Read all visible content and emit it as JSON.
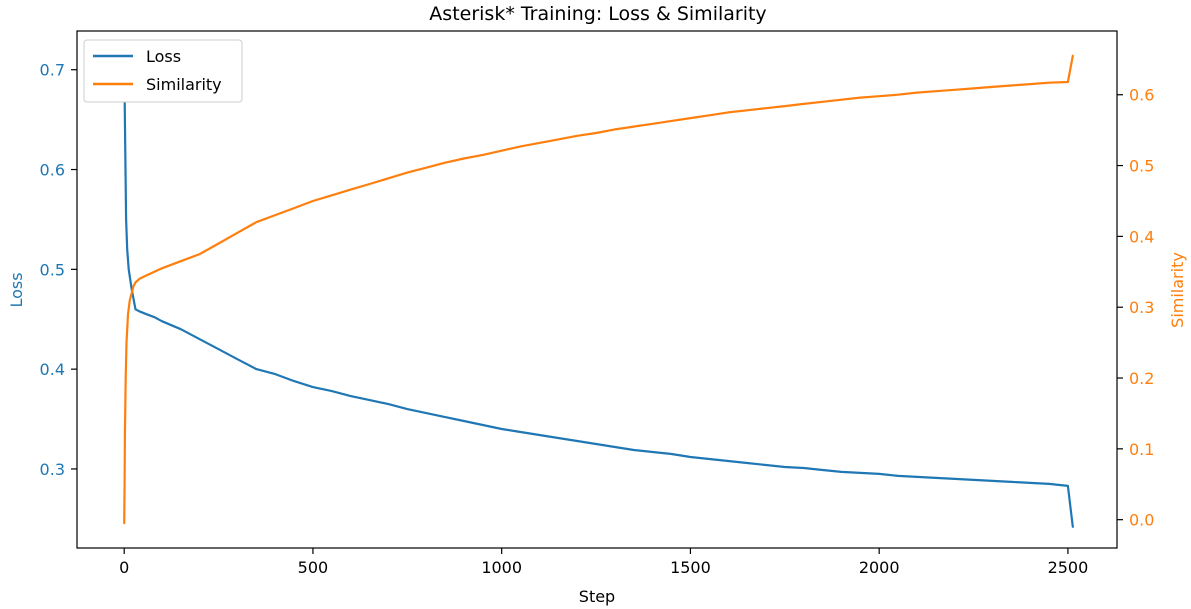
{
  "chart_data": {
    "type": "line",
    "title": "Asterisk* Training: Loss & Similarity",
    "xlabel": "Step",
    "ylabel_left": "Loss",
    "ylabel_right": "Similarity",
    "xlim": [
      -125,
      2630
    ],
    "ylim_left": [
      0.2208,
      0.7388
    ],
    "ylim_right": [
      -0.04,
      0.69
    ],
    "x_ticks": [
      0,
      500,
      1000,
      1500,
      2000,
      2500
    ],
    "y_left_ticks": [
      0.3,
      0.4,
      0.5,
      0.6,
      0.7
    ],
    "y_right_ticks": [
      0.0,
      0.1,
      0.2,
      0.3,
      0.4,
      0.5,
      0.6
    ],
    "grid": false,
    "legend_position": "upper-left",
    "series": [
      {
        "name": "Loss",
        "axis": "left",
        "color": "#1f77b4",
        "x": [
          0,
          2,
          5,
          8,
          12,
          16,
          20,
          25,
          30,
          40,
          60,
          80,
          100,
          150,
          200,
          250,
          300,
          350,
          400,
          450,
          500,
          550,
          600,
          650,
          700,
          750,
          800,
          850,
          900,
          950,
          1000,
          1050,
          1100,
          1150,
          1200,
          1250,
          1300,
          1350,
          1400,
          1450,
          1500,
          1550,
          1600,
          1650,
          1700,
          1750,
          1800,
          1850,
          1900,
          1950,
          2000,
          2050,
          2100,
          2150,
          2200,
          2250,
          2300,
          2350,
          2400,
          2450,
          2500,
          2513
        ],
        "y": [
          0.72,
          0.65,
          0.55,
          0.52,
          0.5,
          0.49,
          0.48,
          0.47,
          0.46,
          0.458,
          0.455,
          0.452,
          0.448,
          0.44,
          0.43,
          0.42,
          0.41,
          0.4,
          0.395,
          0.388,
          0.382,
          0.378,
          0.373,
          0.369,
          0.365,
          0.36,
          0.356,
          0.352,
          0.348,
          0.344,
          0.34,
          0.337,
          0.334,
          0.331,
          0.328,
          0.325,
          0.322,
          0.319,
          0.317,
          0.315,
          0.312,
          0.31,
          0.308,
          0.306,
          0.304,
          0.302,
          0.301,
          0.299,
          0.297,
          0.296,
          0.295,
          0.293,
          0.292,
          0.291,
          0.29,
          0.289,
          0.288,
          0.287,
          0.286,
          0.285,
          0.283,
          0.242
        ]
      },
      {
        "name": "Similarity",
        "axis": "right",
        "color": "#ff7f0e",
        "x": [
          0,
          1,
          2,
          4,
          6,
          10,
          15,
          20,
          25,
          30,
          40,
          60,
          80,
          100,
          150,
          200,
          250,
          300,
          350,
          400,
          450,
          500,
          550,
          600,
          650,
          700,
          750,
          800,
          850,
          900,
          950,
          1000,
          1050,
          1100,
          1150,
          1200,
          1250,
          1300,
          1350,
          1400,
          1450,
          1500,
          1550,
          1600,
          1650,
          1700,
          1750,
          1800,
          1850,
          1900,
          1950,
          2000,
          2050,
          2100,
          2150,
          2200,
          2250,
          2300,
          2350,
          2400,
          2450,
          2500,
          2513
        ],
        "y": [
          -0.005,
          0.05,
          0.12,
          0.2,
          0.25,
          0.29,
          0.31,
          0.32,
          0.33,
          0.335,
          0.34,
          0.345,
          0.35,
          0.355,
          0.365,
          0.375,
          0.39,
          0.405,
          0.42,
          0.43,
          0.44,
          0.45,
          0.458,
          0.466,
          0.474,
          0.482,
          0.49,
          0.497,
          0.504,
          0.51,
          0.515,
          0.521,
          0.527,
          0.532,
          0.537,
          0.542,
          0.546,
          0.551,
          0.555,
          0.559,
          0.563,
          0.567,
          0.571,
          0.575,
          0.578,
          0.581,
          0.584,
          0.587,
          0.59,
          0.593,
          0.596,
          0.598,
          0.6,
          0.603,
          0.605,
          0.607,
          0.609,
          0.611,
          0.613,
          0.615,
          0.617,
          0.618,
          0.655
        ]
      }
    ]
  }
}
